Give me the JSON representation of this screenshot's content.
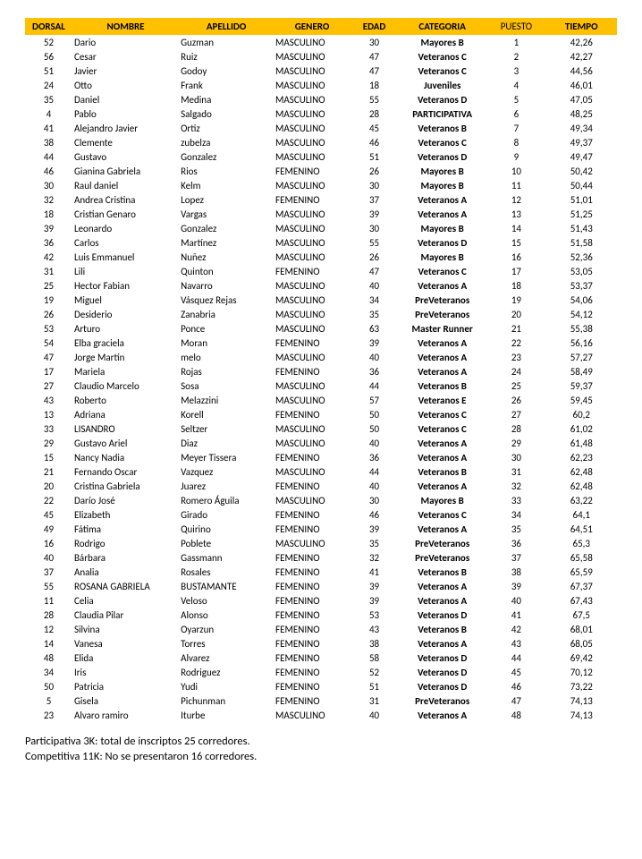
{
  "table": {
    "header_bg": "#ffc000",
    "columns": [
      {
        "key": "dorsal",
        "label": "DORSAL",
        "bold": true,
        "align": "center"
      },
      {
        "key": "nombre",
        "label": "NOMBRE",
        "bold": true,
        "align": "left"
      },
      {
        "key": "apellido",
        "label": "APELLIDO",
        "bold": true,
        "align": "left"
      },
      {
        "key": "genero",
        "label": "GENERO",
        "bold": true,
        "align": "left"
      },
      {
        "key": "edad",
        "label": "EDAD",
        "bold": true,
        "align": "center"
      },
      {
        "key": "categoria",
        "label": "CATEGORIA",
        "bold": true,
        "align": "center",
        "cellBold": true
      },
      {
        "key": "puesto",
        "label": "PUESTO",
        "bold": false,
        "align": "center"
      },
      {
        "key": "tiempo",
        "label": "TIEMPO",
        "bold": true,
        "align": "center"
      }
    ],
    "rows": [
      {
        "dorsal": "52",
        "nombre": "Dario",
        "apellido": "Guzman",
        "genero": "MASCULINO",
        "edad": "30",
        "categoria": "Mayores B",
        "puesto": "1",
        "tiempo": "42,26"
      },
      {
        "dorsal": "56",
        "nombre": "Cesar",
        "apellido": "Ruiz",
        "genero": "MASCULINO",
        "edad": "47",
        "categoria": "Veteranos C",
        "puesto": "2",
        "tiempo": "42,27"
      },
      {
        "dorsal": "51",
        "nombre": "Javier",
        "apellido": "Godoy",
        "genero": "MASCULINO",
        "edad": "47",
        "categoria": "Veteranos C",
        "puesto": "3",
        "tiempo": "44,56"
      },
      {
        "dorsal": "24",
        "nombre": "Otto",
        "apellido": "Frank",
        "genero": "MASCULINO",
        "edad": "18",
        "categoria": "Juveniles",
        "puesto": "4",
        "tiempo": "46,01"
      },
      {
        "dorsal": "35",
        "nombre": "Daniel",
        "apellido": "Medina",
        "genero": "MASCULINO",
        "edad": "55",
        "categoria": "Veteranos D",
        "puesto": "5",
        "tiempo": "47,05"
      },
      {
        "dorsal": "4",
        "nombre": "Pablo",
        "apellido": "Salgado",
        "genero": "MASCULINO",
        "edad": "28",
        "categoria": "PARTICIPATIVA",
        "puesto": "6",
        "tiempo": "48,25"
      },
      {
        "dorsal": "41",
        "nombre": "Alejandro Javier",
        "apellido": "Ortiz",
        "genero": "MASCULINO",
        "edad": "45",
        "categoria": "Veteranos B",
        "puesto": "7",
        "tiempo": "49,34"
      },
      {
        "dorsal": "38",
        "nombre": "Clemente",
        "apellido": "zubelza",
        "genero": "MASCULINO",
        "edad": "46",
        "categoria": "Veteranos C",
        "puesto": "8",
        "tiempo": "49,37"
      },
      {
        "dorsal": "44",
        "nombre": "Gustavo",
        "apellido": "Gonzalez",
        "genero": "MASCULINO",
        "edad": "51",
        "categoria": "Veteranos D",
        "puesto": "9",
        "tiempo": "49,47"
      },
      {
        "dorsal": "46",
        "nombre": "Gianina Gabriela",
        "apellido": "Rios",
        "genero": "FEMENINO",
        "edad": "26",
        "categoria": "Mayores B",
        "puesto": "10",
        "tiempo": "50,42"
      },
      {
        "dorsal": "30",
        "nombre": "Raul daniel",
        "apellido": "Kelm",
        "genero": "MASCULINO",
        "edad": "30",
        "categoria": "Mayores B",
        "puesto": "11",
        "tiempo": "50,44"
      },
      {
        "dorsal": "32",
        "nombre": "Andrea Cristina",
        "apellido": "Lopez",
        "genero": "FEMENINO",
        "edad": "37",
        "categoria": "Veteranos A",
        "puesto": "12",
        "tiempo": "51,01"
      },
      {
        "dorsal": "18",
        "nombre": "Cristian  Genaro",
        "apellido": "Vargas",
        "genero": "MASCULINO",
        "edad": "39",
        "categoria": "Veteranos A",
        "puesto": "13",
        "tiempo": "51,25"
      },
      {
        "dorsal": "39",
        "nombre": "Leonardo",
        "apellido": "Gonzalez",
        "genero": "MASCULINO",
        "edad": "30",
        "categoria": "Mayores B",
        "puesto": "14",
        "tiempo": "51,43"
      },
      {
        "dorsal": "36",
        "nombre": "Carlos",
        "apellido": "Martínez",
        "genero": "MASCULINO",
        "edad": "55",
        "categoria": "Veteranos D",
        "puesto": "15",
        "tiempo": "51,58"
      },
      {
        "dorsal": "42",
        "nombre": "Luis Emmanuel",
        "apellido": "Nuñez",
        "genero": "MASCULINO",
        "edad": "26",
        "categoria": "Mayores B",
        "puesto": "16",
        "tiempo": "52,36"
      },
      {
        "dorsal": "31",
        "nombre": "Lili",
        "apellido": "Quinton",
        "genero": "FEMENINO",
        "edad": "47",
        "categoria": "Veteranos C",
        "puesto": "17",
        "tiempo": "53,05"
      },
      {
        "dorsal": "25",
        "nombre": "Hector Fabian",
        "apellido": "Navarro",
        "genero": "MASCULINO",
        "edad": "40",
        "categoria": "Veteranos A",
        "puesto": "18",
        "tiempo": "53,37"
      },
      {
        "dorsal": "19",
        "nombre": "Miguel",
        "apellido": "Vásquez Rejas",
        "genero": "MASCULINO",
        "edad": "34",
        "categoria": "PreVeteranos",
        "puesto": "19",
        "tiempo": "54,06"
      },
      {
        "dorsal": "26",
        "nombre": "Desiderio",
        "apellido": "Zanabria",
        "genero": "MASCULINO",
        "edad": "35",
        "categoria": "PreVeteranos",
        "puesto": "20",
        "tiempo": "54,12"
      },
      {
        "dorsal": "53",
        "nombre": "Arturo",
        "apellido": "Ponce",
        "genero": "MASCULINO",
        "edad": "63",
        "categoria": "Master Runner",
        "puesto": "21",
        "tiempo": "55,38"
      },
      {
        "dorsal": "54",
        "nombre": "Elba graciela",
        "apellido": "Moran",
        "genero": "FEMENINO",
        "edad": "39",
        "categoria": "Veteranos A",
        "puesto": "22",
        "tiempo": "56,16"
      },
      {
        "dorsal": "47",
        "nombre": "Jorge Martín",
        "apellido": "melo",
        "genero": "MASCULINO",
        "edad": "40",
        "categoria": "Veteranos A",
        "puesto": "23",
        "tiempo": "57,27"
      },
      {
        "dorsal": "17",
        "nombre": "Mariela",
        "apellido": "Rojas",
        "genero": "FEMENINO",
        "edad": "36",
        "categoria": "Veteranos A",
        "puesto": "24",
        "tiempo": "58,49"
      },
      {
        "dorsal": "27",
        "nombre": "Claudio Marcelo",
        "apellido": "Sosa",
        "genero": "MASCULINO",
        "edad": "44",
        "categoria": "Veteranos B",
        "puesto": "25",
        "tiempo": "59,37"
      },
      {
        "dorsal": "43",
        "nombre": "Roberto",
        "apellido": "Melazzini",
        "genero": "MASCULINO",
        "edad": "57",
        "categoria": "Veteranos E",
        "puesto": "26",
        "tiempo": "59,45"
      },
      {
        "dorsal": "13",
        "nombre": "Adriana",
        "apellido": "Korell",
        "genero": "FEMENINO",
        "edad": "50",
        "categoria": "Veteranos C",
        "puesto": "27",
        "tiempo": "60,2"
      },
      {
        "dorsal": "33",
        "nombre": "LISANDRO",
        "apellido": "Seltzer",
        "genero": "MASCULINO",
        "edad": "50",
        "categoria": "Veteranos C",
        "puesto": "28",
        "tiempo": "61,02"
      },
      {
        "dorsal": "29",
        "nombre": "Gustavo Ariel",
        "apellido": "Diaz",
        "genero": "MASCULINO",
        "edad": "40",
        "categoria": "Veteranos A",
        "puesto": "29",
        "tiempo": "61,48"
      },
      {
        "dorsal": "15",
        "nombre": "Nancy Nadia",
        "apellido": "Meyer Tissera",
        "genero": "FEMENINO",
        "edad": "36",
        "categoria": "Veteranos A",
        "puesto": "30",
        "tiempo": "62,23"
      },
      {
        "dorsal": "21",
        "nombre": "Fernando Oscar",
        "apellido": "Vazquez",
        "genero": "MASCULINO",
        "edad": "44",
        "categoria": "Veteranos B",
        "puesto": "31",
        "tiempo": "62,48"
      },
      {
        "dorsal": "20",
        "nombre": "Cristina Gabriela",
        "apellido": "Juarez",
        "genero": "FEMENINO",
        "edad": "40",
        "categoria": "Veteranos A",
        "puesto": "32",
        "tiempo": "62,48"
      },
      {
        "dorsal": "22",
        "nombre": "Darío José",
        "apellido": "Romero Águila",
        "genero": "MASCULINO",
        "edad": "30",
        "categoria": "Mayores B",
        "puesto": "33",
        "tiempo": "63,22"
      },
      {
        "dorsal": "45",
        "nombre": "Elizabeth",
        "apellido": "Girado",
        "genero": "FEMENINO",
        "edad": "46",
        "categoria": "Veteranos C",
        "puesto": "34",
        "tiempo": "64,1"
      },
      {
        "dorsal": "49",
        "nombre": "Fátima",
        "apellido": "Quirino",
        "genero": "FEMENINO",
        "edad": "39",
        "categoria": "Veteranos A",
        "puesto": "35",
        "tiempo": "64,51"
      },
      {
        "dorsal": "16",
        "nombre": "Rodrigo",
        "apellido": "Poblete",
        "genero": "MASCULINO",
        "edad": "35",
        "categoria": "PreVeteranos",
        "puesto": "36",
        "tiempo": "65,3"
      },
      {
        "dorsal": "40",
        "nombre": "Bárbara",
        "apellido": "Gassmann",
        "genero": "FEMENINO",
        "edad": "32",
        "categoria": "PreVeteranos",
        "puesto": "37",
        "tiempo": "65,58"
      },
      {
        "dorsal": "37",
        "nombre": "Analia",
        "apellido": "Rosales",
        "genero": "FEMENINO",
        "edad": "41",
        "categoria": "Veteranos B",
        "puesto": "38",
        "tiempo": "65,59"
      },
      {
        "dorsal": "55",
        "nombre": "ROSANA GABRIELA",
        "apellido": "BUSTAMANTE",
        "genero": "FEMENINO",
        "edad": "39",
        "categoria": "Veteranos A",
        "puesto": "39",
        "tiempo": "67,37"
      },
      {
        "dorsal": "11",
        "nombre": "Celia",
        "apellido": "Veloso",
        "genero": "FEMENINO",
        "edad": "39",
        "categoria": "Veteranos A",
        "puesto": "40",
        "tiempo": "67,43"
      },
      {
        "dorsal": "28",
        "nombre": "Claudia Pilar",
        "apellido": "Alonso",
        "genero": "FEMENINO",
        "edad": "53",
        "categoria": "Veteranos D",
        "puesto": "41",
        "tiempo": "67,5"
      },
      {
        "dorsal": "12",
        "nombre": "Silvina",
        "apellido": "Oyarzun",
        "genero": "FEMENINO",
        "edad": "43",
        "categoria": "Veteranos B",
        "puesto": "42",
        "tiempo": "68,01"
      },
      {
        "dorsal": "14",
        "nombre": "Vanesa",
        "apellido": "Torres",
        "genero": "FEMENINO",
        "edad": "38",
        "categoria": "Veteranos A",
        "puesto": "43",
        "tiempo": "68,05"
      },
      {
        "dorsal": "48",
        "nombre": "Elida",
        "apellido": "Alvarez",
        "genero": "FEMENINO",
        "edad": "58",
        "categoria": "Veteranos D",
        "puesto": "44",
        "tiempo": "69,42"
      },
      {
        "dorsal": "34",
        "nombre": "Iris",
        "apellido": "Rodriguez",
        "genero": "FEMENINO",
        "edad": "52",
        "categoria": "Veteranos D",
        "puesto": "45",
        "tiempo": "70,12"
      },
      {
        "dorsal": "50",
        "nombre": "Patricia",
        "apellido": "Yudi",
        "genero": "FEMENINO",
        "edad": "51",
        "categoria": "Veteranos D",
        "puesto": "46",
        "tiempo": "73,22"
      },
      {
        "dorsal": "5",
        "nombre": "Gisela",
        "apellido": "Pichunman",
        "genero": "FEMENINO",
        "edad": "31",
        "categoria": "PreVeteranos",
        "puesto": "47",
        "tiempo": "74,13"
      },
      {
        "dorsal": "23",
        "nombre": "Alvaro ramiro",
        "apellido": "Iturbe",
        "genero": "MASCULINO",
        "edad": "40",
        "categoria": "Veteranos A",
        "puesto": "48",
        "tiempo": "74,13"
      }
    ]
  },
  "footer": {
    "line1": "Participativa 3K: total de inscriptos 25 corredores.",
    "line2": "Competitiva 11K: No se presentaron 16 corredores."
  }
}
